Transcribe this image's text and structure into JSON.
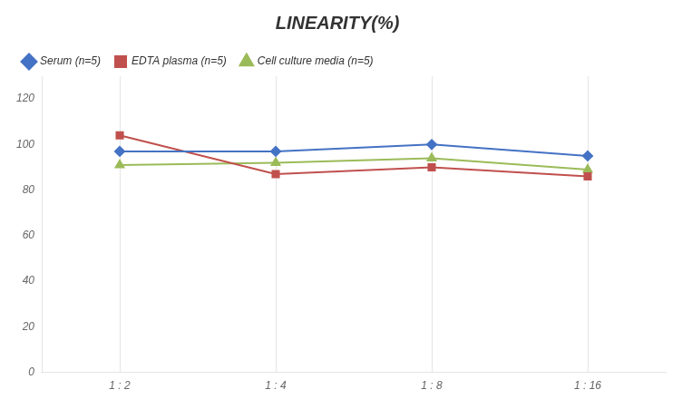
{
  "chart_data": {
    "type": "line",
    "title": "LINEARITY(%)",
    "categories": [
      "1 : 2",
      "1 : 4",
      "1 : 8",
      "1 : 16"
    ],
    "series": [
      {
        "name": "Serum (n=5)",
        "color": "#4472C4",
        "marker": "diamond",
        "values": [
          97,
          97,
          100,
          95
        ]
      },
      {
        "name": "EDTA plasma (n=5)",
        "color": "#C0504D",
        "marker": "square",
        "values": [
          104,
          87,
          90,
          86
        ]
      },
      {
        "name": "Cell culture media (n=5)",
        "color": "#9BBB59",
        "marker": "triangle",
        "values": [
          91,
          92,
          94,
          89
        ]
      }
    ],
    "ylim": [
      0,
      130
    ],
    "yticks": [
      0,
      20,
      40,
      60,
      80,
      100,
      120
    ],
    "grid": "x",
    "legend": "top"
  }
}
